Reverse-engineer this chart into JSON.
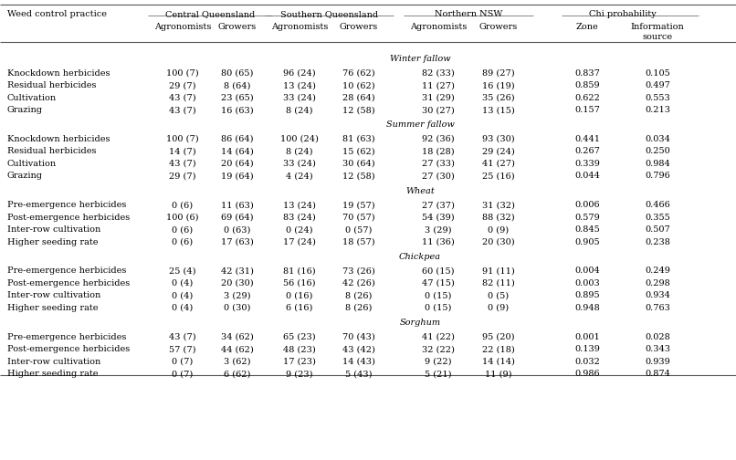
{
  "sections": [
    {
      "label": "Winter fallow",
      "rows": [
        [
          "Knockdown herbicides",
          "100 (7)",
          "80 (65)",
          "96 (24)",
          "76 (62)",
          "82 (33)",
          "89 (27)",
          "0.837",
          "0.105"
        ],
        [
          "Residual herbicides",
          "29 (7)",
          "8 (64)",
          "13 (24)",
          "10 (62)",
          "11 (27)",
          "16 (19)",
          "0.859",
          "0.497"
        ],
        [
          "Cultivation",
          "43 (7)",
          "23 (65)",
          "33 (24)",
          "28 (64)",
          "31 (29)",
          "35 (26)",
          "0.622",
          "0.553"
        ],
        [
          "Grazing",
          "43 (7)",
          "16 (63)",
          "8 (24)",
          "12 (58)",
          "30 (27)",
          "13 (15)",
          "0.157",
          "0.213"
        ]
      ]
    },
    {
      "label": "Summer fallow",
      "rows": [
        [
          "Knockdown herbicides",
          "100 (7)",
          "86 (64)",
          "100 (24)",
          "81 (63)",
          "92 (36)",
          "93 (30)",
          "0.441",
          "0.034"
        ],
        [
          "Residual herbicides",
          "14 (7)",
          "14 (64)",
          "8 (24)",
          "15 (62)",
          "18 (28)",
          "29 (24)",
          "0.267",
          "0.250"
        ],
        [
          "Cultivation",
          "43 (7)",
          "20 (64)",
          "33 (24)",
          "30 (64)",
          "27 (33)",
          "41 (27)",
          "0.339",
          "0.984"
        ],
        [
          "Grazing",
          "29 (7)",
          "19 (64)",
          "4 (24)",
          "12 (58)",
          "27 (30)",
          "25 (16)",
          "0.044",
          "0.796"
        ]
      ]
    },
    {
      "label": "Wheat",
      "rows": [
        [
          "Pre-emergence herbicides",
          "0 (6)",
          "11 (63)",
          "13 (24)",
          "19 (57)",
          "27 (37)",
          "31 (32)",
          "0.006",
          "0.466"
        ],
        [
          "Post-emergence herbicides",
          "100 (6)",
          "69 (64)",
          "83 (24)",
          "70 (57)",
          "54 (39)",
          "88 (32)",
          "0.579",
          "0.355"
        ],
        [
          "Inter-row cultivation",
          "0 (6)",
          "0 (63)",
          "0 (24)",
          "0 (57)",
          "3 (29)",
          "0 (9)",
          "0.845",
          "0.507"
        ],
        [
          "Higher seeding rate",
          "0 (6)",
          "17 (63)",
          "17 (24)",
          "18 (57)",
          "11 (36)",
          "20 (30)",
          "0.905",
          "0.238"
        ]
      ]
    },
    {
      "label": "Chickpea",
      "rows": [
        [
          "Pre-emergence herbicides",
          "25 (4)",
          "42 (31)",
          "81 (16)",
          "73 (26)",
          "60 (15)",
          "91 (11)",
          "0.004",
          "0.249"
        ],
        [
          "Post-emergence herbicides",
          "0 (4)",
          "20 (30)",
          "56 (16)",
          "42 (26)",
          "47 (15)",
          "82 (11)",
          "0.003",
          "0.298"
        ],
        [
          "Inter-row cultivation",
          "0 (4)",
          "3 (29)",
          "0 (16)",
          "8 (26)",
          "0 (15)",
          "0 (5)",
          "0.895",
          "0.934"
        ],
        [
          "Higher seeding rate",
          "0 (4)",
          "0 (30)",
          "6 (16)",
          "8 (26)",
          "0 (15)",
          "0 (9)",
          "0.948",
          "0.763"
        ]
      ]
    },
    {
      "label": "Sorghum",
      "rows": [
        [
          "Pre-emergence herbicides",
          "43 (7)",
          "34 (62)",
          "65 (23)",
          "70 (43)",
          "41 (22)",
          "95 (20)",
          "0.001",
          "0.028"
        ],
        [
          "Post-emergence herbicides",
          "57 (7)",
          "44 (62)",
          "48 (23)",
          "43 (42)",
          "32 (22)",
          "22 (18)",
          "0.139",
          "0.343"
        ],
        [
          "Inter-row cultivation",
          "0 (7)",
          "3 (62)",
          "17 (23)",
          "14 (43)",
          "9 (22)",
          "14 (14)",
          "0.032",
          "0.939"
        ],
        [
          "Higher seeding rate",
          "0 (7)",
          "6 (62)",
          "9 (23)",
          "5 (43)",
          "5 (21)",
          "11 (9)",
          "0.986",
          "0.874"
        ]
      ]
    }
  ],
  "col_group_labels": [
    "Central Queensland",
    "Southern Queensland",
    "Northern NSW",
    "Chi probability"
  ],
  "col_sub_labels": [
    "Agronomists",
    "Growers",
    "Agronomists",
    "Growers",
    "Agronomists",
    "Growers",
    "Zone",
    "Information\nsource"
  ],
  "header_col0": "Weed control practice",
  "bg_color": "#ffffff",
  "text_color": "#000000",
  "line_color": "#555555",
  "font_size": 7.0,
  "header_font_size": 7.0
}
